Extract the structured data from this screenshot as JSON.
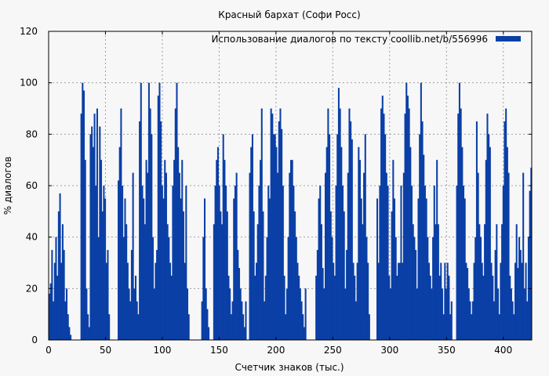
{
  "chart_data": {
    "type": "bar",
    "title": "Красный бархат (Софи Росс)",
    "xlabel": "Счетчик знаков (тыс.)",
    "ylabel": "% диалогов",
    "xlim": [
      0,
      425
    ],
    "ylim": [
      0,
      120
    ],
    "xticks": [
      0,
      50,
      100,
      150,
      200,
      250,
      300,
      350,
      400
    ],
    "yticks": [
      0,
      20,
      40,
      60,
      80,
      100,
      120
    ],
    "grid": true,
    "legend_position": "top-right",
    "series": [
      {
        "name": "Использование диалогов по тексту  coollib.net/b/556996",
        "color": "#0a3fa6",
        "values": [
          18,
          22,
          35,
          15,
          30,
          40,
          25,
          50,
          57,
          30,
          45,
          35,
          15,
          20,
          10,
          5,
          2,
          0,
          0,
          0,
          0,
          0,
          0,
          0,
          88,
          100,
          97,
          70,
          20,
          10,
          5,
          80,
          83,
          75,
          88,
          60,
          90,
          40,
          83,
          70,
          50,
          60,
          55,
          30,
          35,
          10,
          0,
          0,
          0,
          0,
          0,
          0,
          62,
          75,
          90,
          60,
          40,
          55,
          45,
          30,
          20,
          15,
          35,
          65,
          20,
          25,
          15,
          10,
          85,
          100,
          60,
          55,
          45,
          70,
          65,
          100,
          90,
          80,
          40,
          20,
          30,
          35,
          95,
          100,
          85,
          60,
          55,
          70,
          65,
          45,
          40,
          30,
          25,
          60,
          70,
          90,
          100,
          75,
          65,
          55,
          70,
          50,
          30,
          60,
          20,
          10,
          0,
          0,
          0,
          0,
          0,
          0,
          0,
          0,
          0,
          15,
          40,
          55,
          20,
          12,
          5,
          0,
          0,
          0,
          45,
          60,
          70,
          75,
          60,
          50,
          45,
          80,
          70,
          60,
          50,
          25,
          20,
          10,
          15,
          55,
          60,
          65,
          35,
          28,
          20,
          15,
          10,
          5,
          15,
          0,
          0,
          65,
          75,
          80,
          50,
          25,
          30,
          45,
          60,
          70,
          90,
          50,
          15,
          25,
          40,
          60,
          55,
          90,
          88,
          80,
          80,
          75,
          65,
          85,
          90,
          82,
          60,
          25,
          10,
          20,
          40,
          65,
          70,
          70,
          60,
          50,
          40,
          30,
          25,
          20,
          15,
          10,
          5,
          20,
          0,
          0,
          0,
          0,
          0,
          0,
          0,
          25,
          35,
          55,
          60,
          45,
          28,
          20,
          65,
          75,
          90,
          80,
          50,
          40,
          30,
          25,
          60,
          80,
          98,
          90,
          75,
          60,
          50,
          20,
          35,
          65,
          90,
          85,
          78,
          30,
          25,
          15,
          30,
          75,
          70,
          55,
          45,
          65,
          80,
          40,
          30,
          10,
          0,
          0,
          0,
          0,
          0,
          55,
          30,
          60,
          90,
          95,
          88,
          80,
          65,
          60,
          25,
          20,
          50,
          70,
          55,
          40,
          25,
          30,
          30,
          60,
          30,
          65,
          88,
          100,
          95,
          90,
          75,
          60,
          45,
          40,
          35,
          20,
          55,
          80,
          100,
          85,
          72,
          60,
          55,
          40,
          30,
          25,
          20,
          40,
          60,
          45,
          70,
          45,
          25,
          30,
          20,
          10,
          30,
          20,
          30,
          25,
          10,
          15,
          0,
          0,
          0,
          60,
          88,
          100,
          90,
          75,
          60,
          55,
          30,
          28,
          20,
          15,
          10,
          15,
          30,
          40,
          85,
          65,
          45,
          40,
          30,
          25,
          45,
          70,
          88,
          80,
          75,
          30,
          25,
          15,
          35,
          45,
          20,
          10,
          30,
          45,
          60,
          85,
          90,
          75,
          65,
          25,
          20,
          15,
          10,
          30,
          45,
          28,
          40,
          35,
          30,
          65,
          20,
          30,
          15,
          40,
          58,
          67
        ]
      }
    ]
  }
}
